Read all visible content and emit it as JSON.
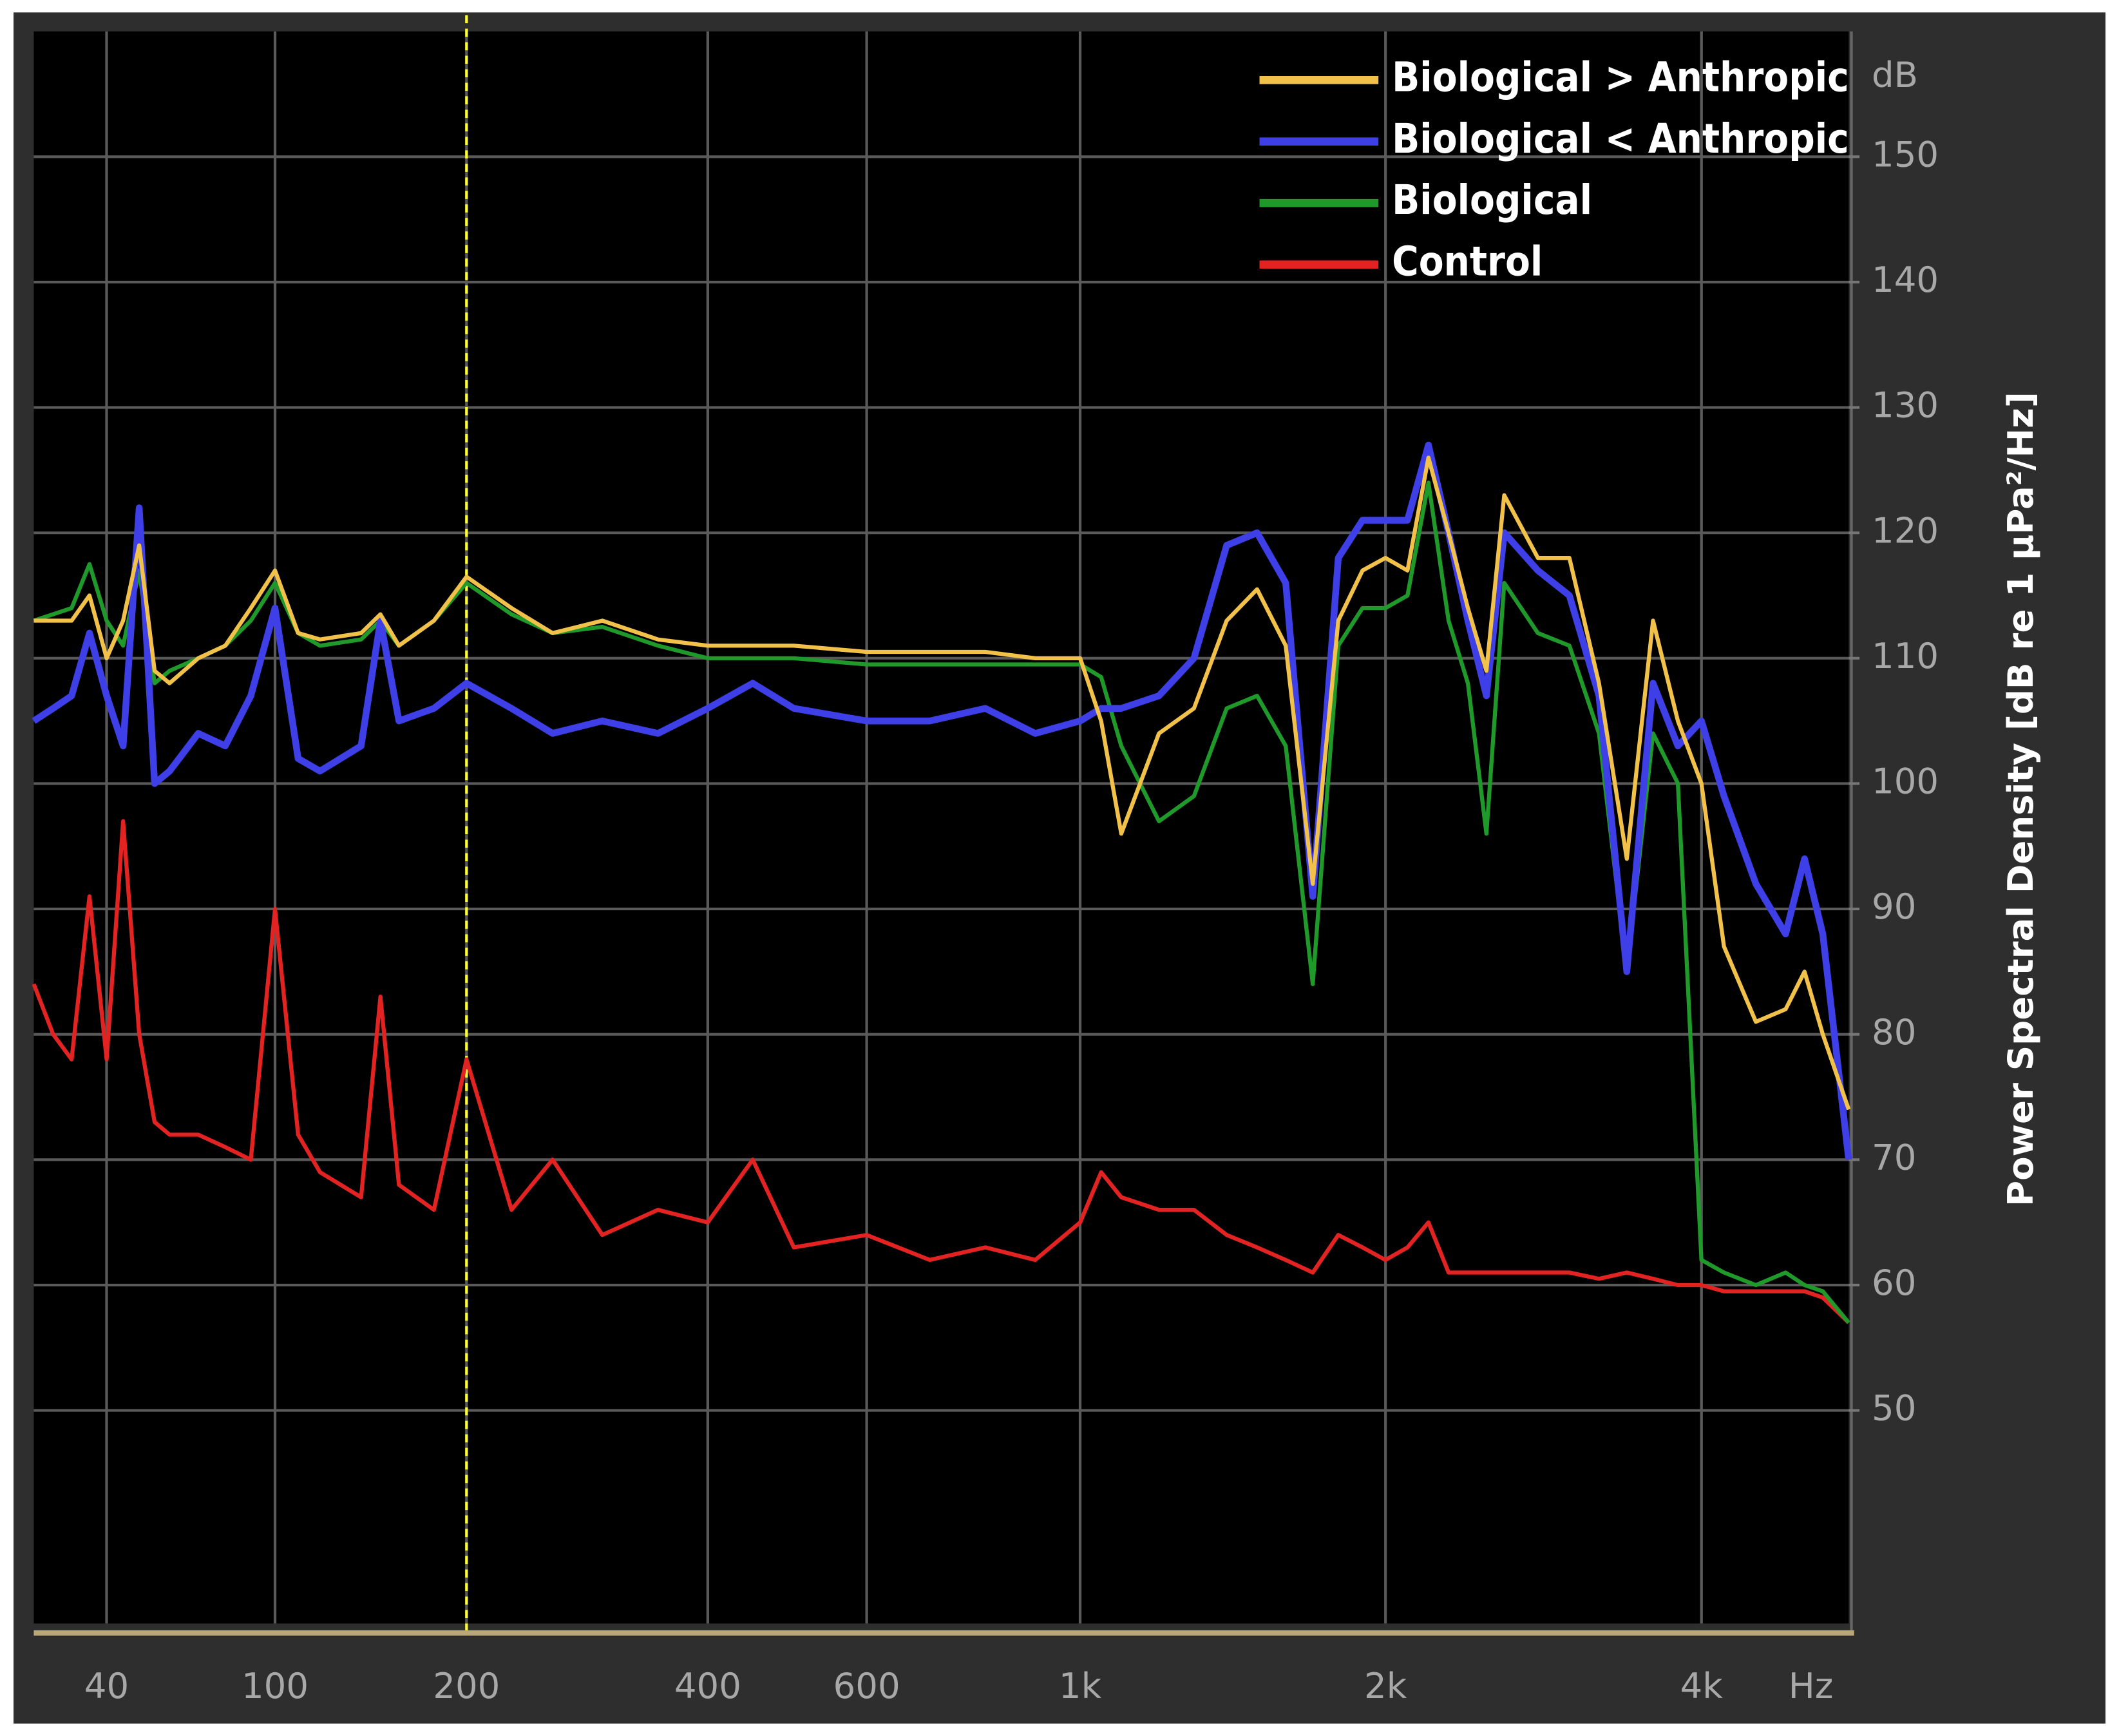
{
  "chart_data": {
    "type": "line",
    "ylabel": "Power Spectral Density [dB re 1 µPa²/Hz]",
    "yunit": "dB",
    "xlabel": "Hz",
    "x": [
      20,
      25,
      30,
      35,
      40,
      45,
      50,
      55,
      60,
      70,
      80,
      90,
      100,
      110,
      120,
      140,
      150,
      160,
      180,
      200,
      230,
      260,
      300,
      350,
      400,
      450,
      500,
      600,
      700,
      800,
      900,
      1000,
      1050,
      1100,
      1200,
      1300,
      1400,
      1500,
      1600,
      1700,
      1800,
      1900,
      2000,
      2100,
      2200,
      2300,
      2400,
      2500,
      2600,
      2800,
      3000,
      3200,
      3400,
      3600,
      3800,
      4000,
      4200,
      4500,
      4800,
      5000,
      5200,
      5500
    ],
    "series": [
      {
        "name": "Control",
        "color": "#e32222",
        "values": [
          84,
          80,
          78,
          91,
          78,
          97,
          80,
          73,
          72,
          72,
          71,
          70,
          90,
          72,
          69,
          67,
          83,
          68,
          66,
          78,
          66,
          70,
          64,
          66,
          65,
          70,
          63,
          64,
          62,
          63,
          62,
          65,
          69,
          67,
          66,
          66,
          64,
          63,
          62,
          61,
          64,
          63,
          62,
          63,
          65,
          61,
          61,
          61,
          61,
          61,
          61,
          60.5,
          61,
          60.5,
          60,
          60,
          59.5,
          59.5,
          59.5,
          59.5,
          59,
          57
        ]
      },
      {
        "name": "Biological",
        "color": "#1f9a2a",
        "values": [
          113,
          113.5,
          114,
          117.5,
          113,
          111,
          117,
          108,
          109,
          110,
          111,
          113,
          116,
          112,
          111,
          111.5,
          113,
          111,
          113,
          116,
          113.5,
          112,
          112.5,
          111,
          110,
          110,
          110,
          109.5,
          109.5,
          109.5,
          109.5,
          109.5,
          108.5,
          103,
          97,
          99,
          106,
          107,
          103,
          84,
          111,
          114,
          114,
          115,
          124,
          113,
          108,
          96,
          116,
          112,
          111,
          104,
          85,
          104,
          100,
          62,
          61,
          60,
          61,
          60,
          59.5,
          57
        ]
      },
      {
        "name": "Biological < Anthropic",
        "color": "#3f3fe8",
        "values": [
          105,
          106,
          107,
          112,
          107,
          103,
          122,
          100,
          101,
          104,
          103,
          107,
          114,
          102,
          101,
          103,
          113,
          105,
          106,
          108,
          106,
          104,
          105,
          104,
          106,
          108,
          106,
          105,
          105,
          106,
          104,
          105,
          106,
          106,
          107,
          110,
          119,
          120,
          116,
          91,
          118,
          121,
          121,
          121,
          127,
          120,
          113,
          107,
          120,
          117,
          115,
          107,
          85,
          108,
          103,
          105,
          99,
          92,
          88,
          94,
          88,
          70
        ]
      },
      {
        "name": "Biological > Anthropic",
        "color": "#f2c14a",
        "values": [
          113,
          113,
          113,
          115,
          110,
          113,
          119,
          109,
          108,
          110,
          111,
          114,
          117,
          112,
          111.5,
          112,
          113.5,
          111,
          113,
          116.5,
          114,
          112,
          113,
          111.5,
          111,
          111,
          111,
          110.5,
          110.5,
          110.5,
          110,
          110,
          105,
          96,
          104,
          106,
          113,
          115.5,
          111,
          92,
          113,
          117,
          118,
          117,
          126,
          120,
          114,
          109,
          123,
          118,
          118,
          108,
          94,
          113,
          105,
          100,
          87,
          81,
          82,
          85,
          80,
          74
        ]
      }
    ],
    "legend": "top-right",
    "vline": {
      "x": 200,
      "color": "#ffff33"
    },
    "xlim": [
      20,
      5500
    ],
    "xticks": [
      40,
      100,
      200,
      400,
      600,
      {
        "value": 1000,
        "label": "1k"
      },
      {
        "value": 2000,
        "label": "2k"
      },
      {
        "value": 4000,
        "label": "4k"
      }
    ],
    "ylim": [
      33,
      160
    ],
    "yticks": [
      50,
      60,
      70,
      80,
      90,
      100,
      110,
      120,
      130,
      140,
      150
    ],
    "grid": true
  }
}
